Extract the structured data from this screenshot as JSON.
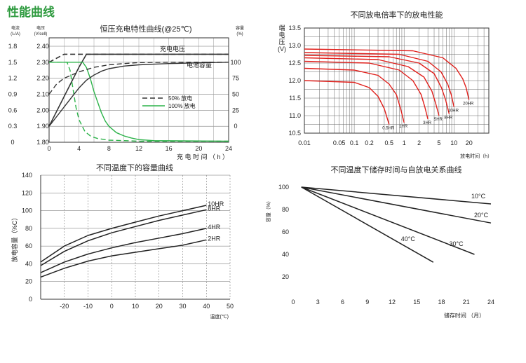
{
  "page_title": "性能曲线",
  "chart_data": [
    {
      "type": "line",
      "title": "恒压充电特性曲线(@25℃)",
      "xlabel": "充 电 时 间 （ h ）",
      "x_ticks": [
        "0",
        "4",
        "8",
        "12",
        "16",
        "20",
        "24"
      ],
      "xlim": [
        0,
        24
      ],
      "left_axis_1": {
        "label_lines": [
          "电流",
          "(Iₙ/A)"
        ],
        "ticks": [
          "0",
          "0.3",
          "0.6",
          "0.9",
          "1.2",
          "1.5",
          "1.8"
        ],
        "range": [
          0,
          1.8
        ]
      },
      "left_axis_2": {
        "label_lines": [
          "电压",
          "(V/cell)"
        ],
        "ticks": [
          "1.80",
          "1.90",
          "2.00",
          "2.10",
          "2.20",
          "2.30",
          "2.40"
        ],
        "range": [
          1.8,
          2.4
        ]
      },
      "right_axis": {
        "label_lines": [
          "容量",
          "(%)"
        ],
        "ticks": [
          "0",
          "25",
          "50",
          "75",
          "100"
        ],
        "range": [
          -25,
          125
        ]
      },
      "annotations": [
        "充电电压",
        "电池容量"
      ],
      "legend": {
        "position": "center",
        "entries": [
          {
            "label": "50% 放电",
            "style": "dashed"
          },
          {
            "label": "100% 放电",
            "style": "solid"
          }
        ]
      },
      "colors": {
        "voltage": "#333333",
        "current": "#2db34a",
        "capacity": "#333333"
      },
      "series": [
        {
          "name": "充电电压",
          "axis": "voltage",
          "style": "dashed",
          "x": [
            0,
            2,
            2.5,
            24
          ],
          "y": [
            2.3,
            2.35,
            2.35,
            2.35
          ]
        },
        {
          "name": "充电电压",
          "axis": "voltage",
          "style": "solid",
          "x": [
            0,
            4,
            5,
            24
          ],
          "y": [
            1.9,
            2.27,
            2.35,
            2.35
          ]
        },
        {
          "name": "电流",
          "axis": "current",
          "style": "dashed",
          "x": [
            0,
            2.4,
            2.8,
            3.2,
            3.6,
            4,
            4.8,
            5.6,
            6.5,
            8,
            10,
            12,
            24
          ],
          "y": [
            1.5,
            1.5,
            1.35,
            1.0,
            0.65,
            0.42,
            0.2,
            0.11,
            0.07,
            0.04,
            0.03,
            0.02,
            0.02
          ]
        },
        {
          "name": "电流",
          "axis": "current",
          "style": "solid",
          "x": [
            0,
            4.5,
            5.0,
            5.5,
            6.0,
            6.5,
            7.0,
            7.5,
            8,
            9,
            10,
            11,
            12,
            14,
            24
          ],
          "y": [
            1.5,
            1.5,
            1.4,
            1.2,
            0.95,
            0.75,
            0.55,
            0.4,
            0.3,
            0.18,
            0.12,
            0.08,
            0.05,
            0.03,
            0.02
          ]
        },
        {
          "name": "电池容量",
          "axis": "capacity",
          "style": "dashed",
          "x": [
            0,
            1,
            2,
            3,
            4,
            6,
            8,
            10,
            12,
            16,
            20,
            24
          ],
          "y": [
            50,
            66,
            75,
            80,
            85,
            92,
            96,
            98,
            99.5,
            100,
            100,
            100
          ]
        },
        {
          "name": "电池容量",
          "axis": "capacity",
          "style": "solid",
          "x": [
            0,
            1,
            2,
            3,
            4,
            5,
            6,
            7,
            8,
            10,
            12,
            14,
            16,
            20,
            24
          ],
          "y": [
            0,
            15,
            30,
            45,
            60,
            72,
            80,
            86,
            90,
            94,
            96,
            97,
            98,
            99,
            100
          ]
        }
      ]
    },
    {
      "type": "line",
      "title": "不同放电倍率下的放电性能",
      "ylabel_lines": [
        "端",
        "电",
        "压",
        "(V)"
      ],
      "xlabel": "放电时间（h）",
      "x_scale": "log",
      "x_ticks": [
        "0.01",
        "0.05",
        "0.1",
        "0.2",
        "0.5",
        "1",
        "2",
        "5",
        "10",
        "20"
      ],
      "x_tick_values": [
        0.01,
        0.05,
        0.1,
        0.2,
        0.5,
        1,
        2,
        5,
        10,
        20
      ],
      "xlim": [
        0.01,
        50
      ],
      "y_ticks": [
        "10.5",
        "11.0",
        "11.5",
        "12.0",
        "12.5",
        "13.0",
        "13.5"
      ],
      "ylim": [
        10.5,
        13.5
      ],
      "color": "#e0201c",
      "series": [
        {
          "name": "0.5HR",
          "x": [
            0.01,
            0.1,
            0.2,
            0.3,
            0.4,
            0.5
          ],
          "y": [
            12.0,
            11.95,
            11.8,
            11.55,
            11.2,
            10.75
          ]
        },
        {
          "name": "1HR",
          "x": [
            0.01,
            0.1,
            0.3,
            0.5,
            0.7,
            0.85,
            1.0
          ],
          "y": [
            12.35,
            12.3,
            12.15,
            11.9,
            11.6,
            11.2,
            10.8
          ]
        },
        {
          "name": "3HR",
          "x": [
            0.01,
            0.2,
            0.8,
            1.5,
            2.2,
            2.6,
            3.0
          ],
          "y": [
            12.55,
            12.5,
            12.3,
            12.0,
            11.6,
            11.25,
            10.9
          ]
        },
        {
          "name": "5HR",
          "x": [
            0.01,
            0.3,
            1.2,
            2.5,
            3.6,
            4.3,
            5.0
          ],
          "y": [
            12.65,
            12.6,
            12.4,
            12.1,
            11.7,
            11.35,
            11.0
          ]
        },
        {
          "name": "8HR",
          "x": [
            0.01,
            0.5,
            2.0,
            4.0,
            5.6,
            6.8,
            8.0
          ],
          "y": [
            12.72,
            12.68,
            12.5,
            12.2,
            11.8,
            11.45,
            11.05
          ]
        },
        {
          "name": "10HR",
          "x": [
            0.01,
            0.8,
            3.0,
            5.5,
            7.5,
            8.8,
            10.0
          ],
          "y": [
            12.8,
            12.75,
            12.55,
            12.25,
            11.9,
            11.6,
            11.25
          ]
        },
        {
          "name": "20HR",
          "x": [
            0.01,
            1.5,
            6.0,
            11.0,
            15.0,
            17.5,
            20.0
          ],
          "y": [
            12.9,
            12.85,
            12.65,
            12.35,
            12.05,
            11.8,
            11.45
          ]
        }
      ]
    },
    {
      "type": "line",
      "title": "不同温度下的容量曲线",
      "ylabel": "放电容量（%C）",
      "xlabel": "温度(℃)",
      "x_ticks": [
        "-20",
        "-10",
        "0",
        "10",
        "20",
        "30",
        "40",
        "50"
      ],
      "xlim": [
        -30,
        50
      ],
      "y_ticks": [
        "0",
        "20",
        "40",
        "60",
        "80",
        "100",
        "120",
        "140"
      ],
      "ylim": [
        0,
        140
      ],
      "color": "#222222",
      "series": [
        {
          "name": "10HR",
          "x": [
            -30,
            -20,
            -10,
            0,
            10,
            20,
            30,
            40
          ],
          "y": [
            42,
            60,
            72,
            80,
            87,
            94,
            100,
            106
          ]
        },
        {
          "name": "8HR",
          "x": [
            -30,
            -20,
            -10,
            0,
            10,
            20,
            30,
            40
          ],
          "y": [
            38,
            54,
            66,
            75,
            82,
            89,
            95,
            101
          ]
        },
        {
          "name": "4HR",
          "x": [
            -30,
            -20,
            -10,
            0,
            10,
            20,
            30,
            40
          ],
          "y": [
            30,
            42,
            51,
            58,
            64,
            69,
            74,
            80
          ]
        },
        {
          "name": "2HR",
          "x": [
            -30,
            -20,
            -10,
            0,
            10,
            20,
            30,
            40
          ],
          "y": [
            25,
            35,
            43,
            49,
            53,
            57,
            61,
            67
          ]
        }
      ]
    },
    {
      "type": "line",
      "title": "不同温度下储存时间与自放电关系曲线",
      "ylabel": "容量（%）",
      "xlabel": "储存时间 （月）",
      "x_ticks": [
        "0",
        "3",
        "6",
        "9",
        "12",
        "15",
        "18",
        "21",
        "24"
      ],
      "xlim": [
        0,
        24
      ],
      "y_ticks": [
        "20",
        "40",
        "60",
        "80",
        "100"
      ],
      "ylim": [
        0,
        100
      ],
      "color": "#222222",
      "series": [
        {
          "name": "10°C",
          "x": [
            1,
            24
          ],
          "y": [
            100,
            85
          ]
        },
        {
          "name": "20°C",
          "x": [
            1,
            24
          ],
          "y": [
            100,
            68
          ]
        },
        {
          "name": "30°C",
          "x": [
            1,
            22
          ],
          "y": [
            100,
            40
          ]
        },
        {
          "name": "40°C",
          "x": [
            1,
            17
          ],
          "y": [
            100,
            33
          ]
        }
      ]
    }
  ]
}
